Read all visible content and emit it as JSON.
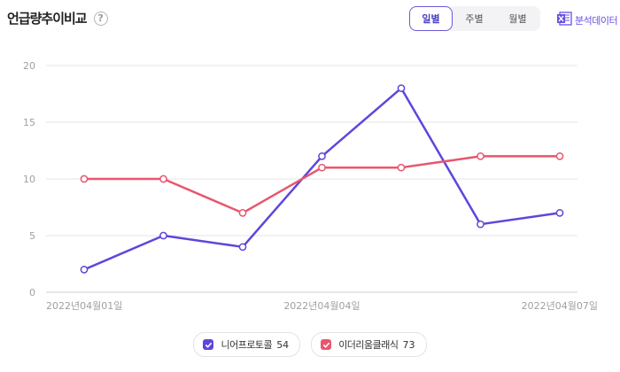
{
  "header": {
    "title": "언급량추이비교",
    "help_icon_glyph": "?"
  },
  "tabs": [
    {
      "label": "일별",
      "active": true
    },
    {
      "label": "주별",
      "active": false
    },
    {
      "label": "월별",
      "active": false
    }
  ],
  "export": {
    "label": "분석데이터",
    "icon": "excel-icon"
  },
  "legend": [
    {
      "label": "니어프로토콜",
      "count": "54",
      "color": "#5b47dc"
    },
    {
      "label": "이더리움클래식",
      "count": "73",
      "color": "#e8566e"
    }
  ],
  "chart_data": {
    "type": "line",
    "x": [
      "2022년04월01일",
      "2022년04월02일",
      "2022년04월03일",
      "2022년04월04일",
      "2022년04월05일",
      "2022년04월06일",
      "2022년04월07일"
    ],
    "x_tick_labels": [
      "2022년04월01일",
      "2022년04월04일",
      "2022년04월07일"
    ],
    "y_ticks": [
      "0",
      "5",
      "10",
      "15",
      "20"
    ],
    "ylim": [
      0,
      20
    ],
    "grid": true,
    "legend_position": "bottom-center",
    "series": [
      {
        "name": "니어프로토콜",
        "color": "#5b47dc",
        "values": [
          2,
          5,
          4,
          12,
          18,
          6,
          7
        ]
      },
      {
        "name": "이더리움클래식",
        "color": "#e8566e",
        "values": [
          10,
          10,
          7,
          11,
          11,
          12,
          12
        ]
      }
    ]
  }
}
